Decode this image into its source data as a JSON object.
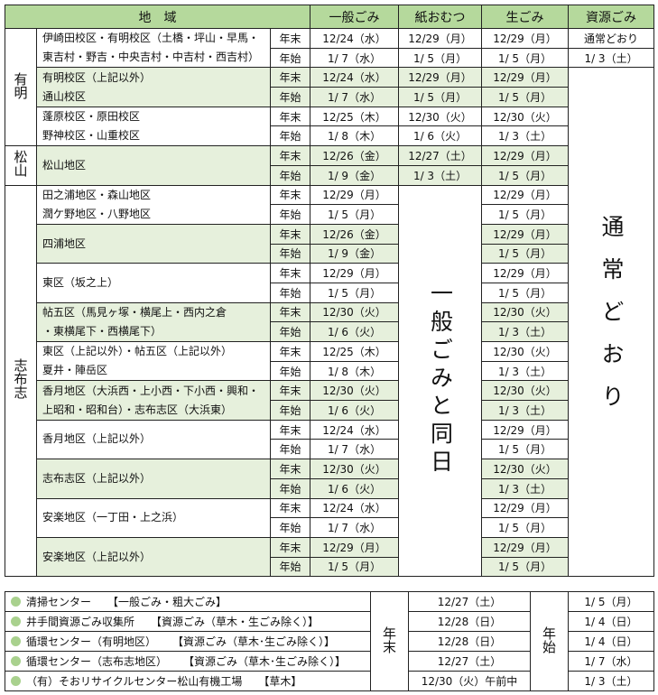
{
  "header": {
    "area": "地　域",
    "general": "一般ごみ",
    "diaper": "紙おむつ",
    "food": "生ごみ",
    "resource": "資源ごみ"
  },
  "labels": {
    "end": "年末",
    "start": "年始"
  },
  "merged": {
    "diaper_same_as_general": "一般ごみと同日",
    "resource_normal": "通常どおり"
  },
  "colors": {
    "header": "#b5d99c",
    "shaded_row": "#e6f0dc",
    "bullet": "#a9d18e"
  },
  "groups": [
    {
      "name": "有明",
      "areas": [
        {
          "name": [
            "伊崎田校区・有明校区（土橋・坪山・早馬・",
            "東吉村・野吉・中央吉村・中吉村・西吉村）"
          ],
          "shaded": false,
          "end": {
            "general": "12/24（水）",
            "diaper": "12/29（月）",
            "food": "12/29（月）",
            "resource": "通常どおり"
          },
          "start": {
            "general": "1/ 7（水）",
            "diaper": "1/ 5（月）",
            "food": "1/ 5（月）",
            "resource": "1/ 3（土）"
          }
        },
        {
          "name": [
            "有明校区（上記以外）",
            "通山校区"
          ],
          "shaded": true,
          "end": {
            "general": "12/24（水）",
            "diaper": "12/29（月）",
            "food": "12/29（月）"
          },
          "start": {
            "general": "1/ 7（水）",
            "diaper": "1/ 5（月）",
            "food": "1/ 5（月）"
          }
        },
        {
          "name": [
            "蓬原校区・原田校区",
            "野神校区・山重校区"
          ],
          "shaded": false,
          "end": {
            "general": "12/25（木）",
            "diaper": "12/30（火）",
            "food": "12/30（火）"
          },
          "start": {
            "general": "1/ 8（木）",
            "diaper": "1/ 6（火）",
            "food": "1/ 3（土）"
          }
        }
      ]
    },
    {
      "name": "松山",
      "areas": [
        {
          "name": [
            "松山地区"
          ],
          "shaded": true,
          "end": {
            "general": "12/26（金）",
            "diaper": "12/27（土）",
            "food": "12/29（月）"
          },
          "start": {
            "general": "1/ 9（金）",
            "diaper": "1/ 3（土）",
            "food": "1/ 5（月）"
          }
        }
      ]
    },
    {
      "name": "志布志",
      "areas": [
        {
          "name": [
            "田之浦地区・森山地区",
            "潤ケ野地区・八野地区"
          ],
          "shaded": false,
          "end": {
            "general": "12/29（月）",
            "food": "12/29（月）"
          },
          "start": {
            "general": "1/ 5（月）",
            "food": "1/ 5（月）"
          }
        },
        {
          "name": [
            "四浦地区"
          ],
          "shaded": true,
          "end": {
            "general": "12/26（金）",
            "food": "12/29（月）"
          },
          "start": {
            "general": "1/ 9（金）",
            "food": "1/ 5（月）"
          }
        },
        {
          "name": [
            "東区（坂之上）"
          ],
          "shaded": false,
          "end": {
            "general": "12/29（月）",
            "food": "12/29（月）"
          },
          "start": {
            "general": "1/ 5（月）",
            "food": "1/ 5（月）"
          }
        },
        {
          "name": [
            "帖五区（馬見ヶ塚・横尾上・西内之倉",
            "・東横尾下・西横尾下）"
          ],
          "shaded": true,
          "end": {
            "general": "12/30（火）",
            "food": "12/30（火）"
          },
          "start": {
            "general": "1/ 6（火）",
            "food": "1/ 3（土）"
          }
        },
        {
          "name": [
            "東区（上記以外）・帖五区（上記以外）",
            "夏井・陣岳区"
          ],
          "shaded": false,
          "end": {
            "general": "12/25（木）",
            "food": "12/30（火）"
          },
          "start": {
            "general": "1/ 8（木）",
            "food": "1/ 3（土）"
          }
        },
        {
          "name": [
            "香月地区（大浜西・上小西・下小西・興和・",
            "上昭和・昭和台）・志布志区（大浜東）"
          ],
          "shaded": true,
          "end": {
            "general": "12/30（火）",
            "food": "12/30（火）"
          },
          "start": {
            "general": "1/ 6（火）",
            "food": "1/ 3（土）"
          }
        },
        {
          "name": [
            "香月地区（上記以外）"
          ],
          "shaded": false,
          "end": {
            "general": "12/24（水）",
            "food": "12/29（月）"
          },
          "start": {
            "general": "1/ 7（水）",
            "food": "1/ 5（月）"
          }
        },
        {
          "name": [
            "志布志区（上記以外）"
          ],
          "shaded": true,
          "end": {
            "general": "12/30（火）",
            "food": "12/30（火）"
          },
          "start": {
            "general": "1/ 6（火）",
            "food": "1/ 3（土）"
          }
        },
        {
          "name": [
            "安楽地区（一丁田・上之浜）"
          ],
          "shaded": false,
          "end": {
            "general": "12/24（水）",
            "food": "12/29（月）"
          },
          "start": {
            "general": "1/ 7（水）",
            "food": "1/ 5（月）"
          }
        },
        {
          "name": [
            "安楽地区（上記以外）"
          ],
          "shaded": true,
          "end": {
            "general": "12/29（月）",
            "food": "12/29（月）"
          },
          "start": {
            "general": "1/ 5（月）",
            "food": "1/ 5（月）"
          }
        }
      ]
    }
  ],
  "facilities": {
    "end_label": "年末",
    "start_label": "年始",
    "items": [
      {
        "name": "清掃センター",
        "type": "【一般ごみ・粗大ごみ】",
        "end": "12/27（土）",
        "start": "1/ 5（月）"
      },
      {
        "name": "井手間資源ごみ収集所",
        "type": "【資源ごみ（草木・生ごみ除く）】",
        "end": "12/28（日）",
        "start": "1/ 4（日）"
      },
      {
        "name": "循環センター（有明地区）",
        "type": "【資源ごみ（草木･生ごみ除く）】",
        "end": "12/28（日）",
        "start": "1/ 4（日）"
      },
      {
        "name": "循環センター（志布志地区）",
        "type": "【資源ごみ（草木･生ごみ除く）】",
        "end": "12/27（土）",
        "start": "1/ 7（水）"
      },
      {
        "name": "（有）そおリサイクルセンター松山有機工場",
        "type": "【草木】",
        "end": "12/30（火）午前中",
        "start": "1/ 3（土）"
      }
    ]
  }
}
